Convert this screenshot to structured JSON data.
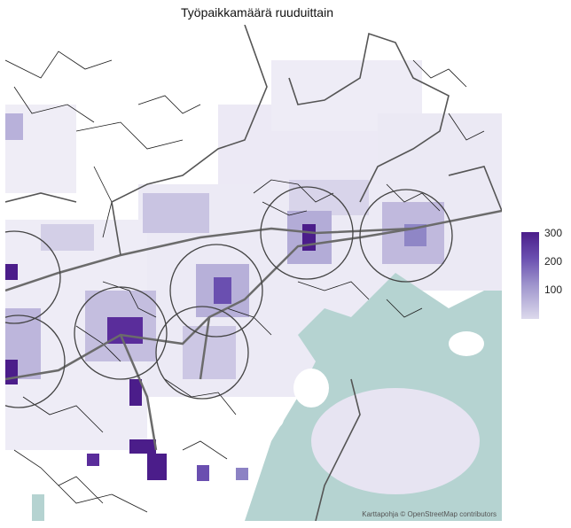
{
  "title": "Työpaikkamäärä ruuduittain",
  "attribution": "Karttapohja © OpenStreetMap contributors",
  "legend": {
    "labels": [
      "300",
      "200",
      "100"
    ],
    "values": [
      300,
      200,
      100
    ],
    "min": 0,
    "max": 320,
    "color_low": "#e6e4f2",
    "color_high": "#4b1d8a"
  },
  "colors": {
    "water": "#b5d3d1",
    "roads": "#1a1a1a",
    "major_roads": "#6b6b6b",
    "boundaries": "#555555",
    "circles": "#444444"
  }
}
